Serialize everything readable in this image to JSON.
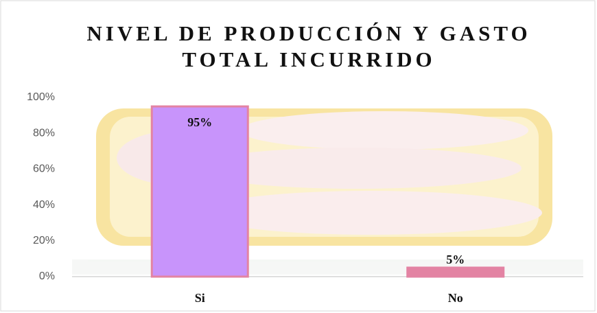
{
  "chart_data": {
    "type": "bar",
    "title": [
      "NIVEL DE PRODUCCIÓN Y GASTO",
      "TOTAL INCURRIDO"
    ],
    "categories": [
      "Si",
      "No"
    ],
    "values": [
      95,
      5
    ],
    "value_labels": [
      "95%",
      "5%"
    ],
    "colors": [
      "#c894fb",
      "#e383a3"
    ],
    "ylim": [
      0,
      100
    ],
    "yticks": [
      {
        "value": 0,
        "label": "0%"
      },
      {
        "value": 20,
        "label": "20%"
      },
      {
        "value": 40,
        "label": "40%"
      },
      {
        "value": 60,
        "label": "60%"
      },
      {
        "value": 80,
        "label": "80%"
      },
      {
        "value": 100,
        "label": "100%"
      }
    ],
    "grid": false
  }
}
